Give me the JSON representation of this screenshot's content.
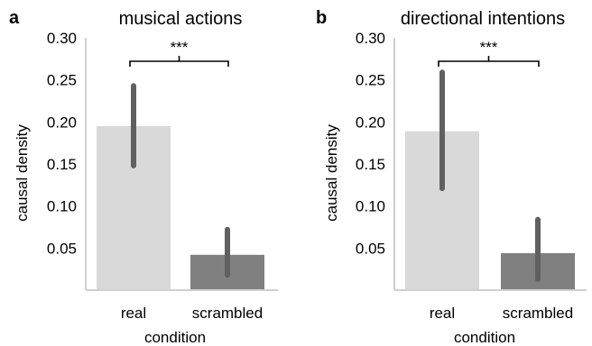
{
  "chart_data": [
    {
      "type": "bar",
      "panel": "a",
      "title": "musical actions",
      "xlabel": "condition",
      "ylabel": "causal density",
      "categories": [
        "real",
        "scrambled"
      ],
      "values": [
        0.195,
        0.042
      ],
      "error_bars": [
        {
          "low": 0.148,
          "high": 0.243
        },
        {
          "low": 0.018,
          "high": 0.072
        }
      ],
      "bar_colors": [
        "#d9d9d9",
        "#808080"
      ],
      "error_bar_color": "#606060",
      "ylim": [
        0.0,
        0.3
      ],
      "yticks": [
        0.05,
        0.1,
        0.15,
        0.2,
        0.25,
        0.3
      ],
      "ytick_labels": [
        "0.05",
        "0.10",
        "0.15",
        "0.20",
        "0.25",
        "0.30"
      ],
      "significance": {
        "between": [
          "real",
          "scrambled"
        ],
        "label": "***"
      },
      "grid": false
    },
    {
      "type": "bar",
      "panel": "b",
      "title": "directional intentions",
      "xlabel": "condition",
      "ylabel": "causal density",
      "categories": [
        "real",
        "scrambled"
      ],
      "values": [
        0.189,
        0.044
      ],
      "error_bars": [
        {
          "low": 0.121,
          "high": 0.259
        },
        {
          "low": 0.013,
          "high": 0.084
        }
      ],
      "bar_colors": [
        "#d9d9d9",
        "#808080"
      ],
      "error_bar_color": "#606060",
      "ylim": [
        0.0,
        0.3
      ],
      "yticks": [
        0.05,
        0.1,
        0.15,
        0.2,
        0.25,
        0.3
      ],
      "ytick_labels": [
        "0.05",
        "0.10",
        "0.15",
        "0.20",
        "0.25",
        "0.30"
      ],
      "significance": {
        "between": [
          "real",
          "scrambled"
        ],
        "label": "***"
      },
      "grid": false
    }
  ]
}
